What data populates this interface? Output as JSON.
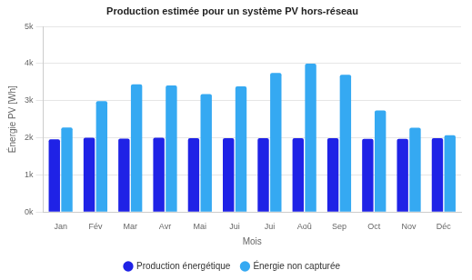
{
  "chart_data": {
    "type": "bar",
    "title": "Production estimée pour un système PV hors-réseau",
    "x_label": "Mois",
    "y_label": "Énergie PV [Wh]",
    "categories": [
      "Jan",
      "Fév",
      "Mar",
      "Avr",
      "Mai",
      "Jui",
      "Jui",
      "Aoû",
      "Sep",
      "Oct",
      "Nov",
      "Déc"
    ],
    "series": [
      {
        "name": "Production énergétique",
        "color": "#1f22e6",
        "values": [
          1960,
          2000,
          1980,
          2000,
          1990,
          1990,
          1990,
          1990,
          1990,
          1970,
          1970,
          1990
        ]
      },
      {
        "name": "Énergie non capturée",
        "color": "#35a9f2",
        "values": [
          2280,
          2990,
          3440,
          3410,
          3180,
          3390,
          3750,
          4000,
          3700,
          2740,
          2270,
          2070
        ]
      }
    ],
    "ylim": [
      0,
      5000
    ],
    "yticks": [
      {
        "value": 0,
        "label": "0k"
      },
      {
        "value": 1000,
        "label": "1k"
      },
      {
        "value": 2000,
        "label": "2k"
      },
      {
        "value": 3000,
        "label": "3k"
      },
      {
        "value": 4000,
        "label": "4k"
      },
      {
        "value": 5000,
        "label": "5k"
      }
    ],
    "grid": true,
    "legend": "bottom"
  }
}
